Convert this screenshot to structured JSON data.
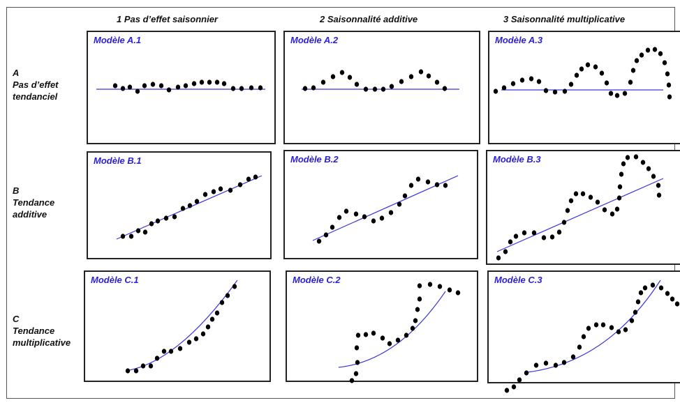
{
  "columns": [
    {
      "label": "1 Pas d’effet saisonnier"
    },
    {
      "label": "2 Saisonnalité additive"
    },
    {
      "label": "3 Saisonnalité multiplicative"
    }
  ],
  "rows": [
    {
      "lines": [
        "A",
        "Pas d’effet",
        "tendanciel"
      ]
    },
    {
      "lines": [
        "B",
        "Tendance",
        "additive"
      ]
    },
    {
      "lines": [
        "C",
        "Tendance",
        "multiplicative"
      ]
    }
  ],
  "panels": [
    [
      "Modèle A.1",
      "Modèle A.2",
      "Modèle A.3"
    ],
    [
      "Modèle B.1",
      "Modèle B.2",
      "Modèle B.3"
    ],
    [
      "Modèle C.1",
      "Modèle C.2",
      "Modèle C.3"
    ]
  ],
  "colors": {
    "trend_line": "#3b35e0",
    "dots": "#000000",
    "panel_title": "#2a1fd6",
    "border": "#222222"
  }
}
